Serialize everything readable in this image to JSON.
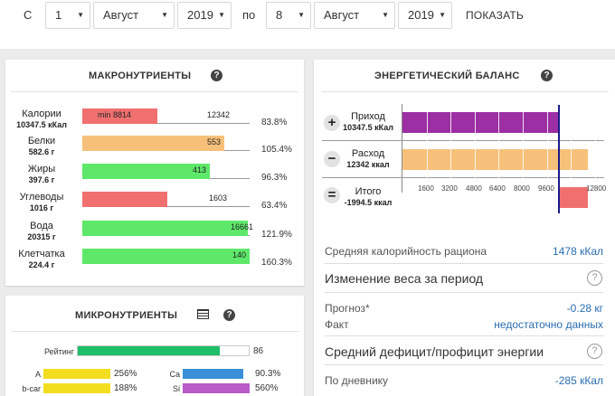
{
  "date_filter": {
    "from_label": "С",
    "from_day": "1",
    "from_month": "Август",
    "from_year": "2019",
    "to_label": "по",
    "to_day": "8",
    "to_month": "Август",
    "to_year": "2019",
    "submit_label": "ПОКАЗАТЬ"
  },
  "macro": {
    "title": "МАКРОНУТРИЕНТЫ",
    "help": "?",
    "rows": [
      {
        "name": "Калории",
        "amount": "10347.5 кКал",
        "bar_text": "min 8814",
        "target_text": "12342",
        "percent": "83.8%",
        "fill": 0.45,
        "color": "#f07070"
      },
      {
        "name": "Белки",
        "amount": "582.6 г",
        "bar_text": "553",
        "target_text": "",
        "percent": "105.4%",
        "fill": 0.85,
        "color": "#f7c07a"
      },
      {
        "name": "Жиры",
        "amount": "397.6 г",
        "bar_text": "413",
        "target_text": "",
        "percent": "96.3%",
        "fill": 0.76,
        "color": "#5ee86a"
      },
      {
        "name": "Углеводы",
        "amount": "1016 г",
        "bar_text": "",
        "target_text": "1603",
        "percent": "63.4%",
        "fill": 0.51,
        "color": "#f07070"
      },
      {
        "name": "Вода",
        "amount": "20315 г",
        "bar_text": "16661",
        "target_text": "",
        "percent": "121.9%",
        "fill": 0.99,
        "color": "#5ee86a"
      },
      {
        "name": "Клетчатка",
        "amount": "224.4 г",
        "bar_text": "140",
        "target_text": "",
        "percent": "160.3%",
        "fill": 1.0,
        "color": "#5ee86a"
      }
    ]
  },
  "energy": {
    "title": "ЭНЕРГЕТИЧЕСКИЙ БАЛАНС",
    "help": "?",
    "income": {
      "sign": "+",
      "label": "Приход",
      "amount": "10347.5 кКал",
      "value": 10347.5,
      "color": "#9b2fa3"
    },
    "expense": {
      "sign": "−",
      "label": "Расход",
      "amount": "12342 ккал",
      "value": 12342,
      "color": "#f7c07a"
    },
    "total": {
      "sign": "=",
      "label": "Итого",
      "amount": "-1994.5 ккал",
      "value": -1994.5,
      "color": "#f07070"
    },
    "ticks": [
      "1600",
      "3200",
      "4800",
      "6400",
      "8000",
      "9600",
      "12800"
    ],
    "stats": {
      "avg_label": "Средняя калорийность рациона",
      "avg_value": "1478 кКал",
      "weight_title": "Изменение веса за период",
      "forecast_label": "Прогноз*",
      "forecast_value": "-0.28 кг",
      "fact_label": "Факт",
      "fact_value": "недостаточно данных",
      "deficit_title": "Средний дефицит/профицит энергии",
      "diary_label": "По дневнику",
      "diary_value": "-285 кКал"
    }
  },
  "micro": {
    "title": "МИКРОНУТРИЕНТЫ",
    "help": "?",
    "rating_label": "Рейтинг",
    "rating_value": "86",
    "rating_fill": 0.83,
    "items": [
      {
        "name": "A",
        "percent": "256%",
        "color": "#f2de1e",
        "fill": 1.0
      },
      {
        "name": "Ca",
        "percent": "90.3%",
        "color": "#3a8fd8",
        "fill": 0.9
      },
      {
        "name": "b-car",
        "percent": "188%",
        "color": "#f2de1e",
        "fill": 1.0
      },
      {
        "name": "Si",
        "percent": "560%",
        "color": "#b85ac8",
        "fill": 1.0
      }
    ]
  }
}
